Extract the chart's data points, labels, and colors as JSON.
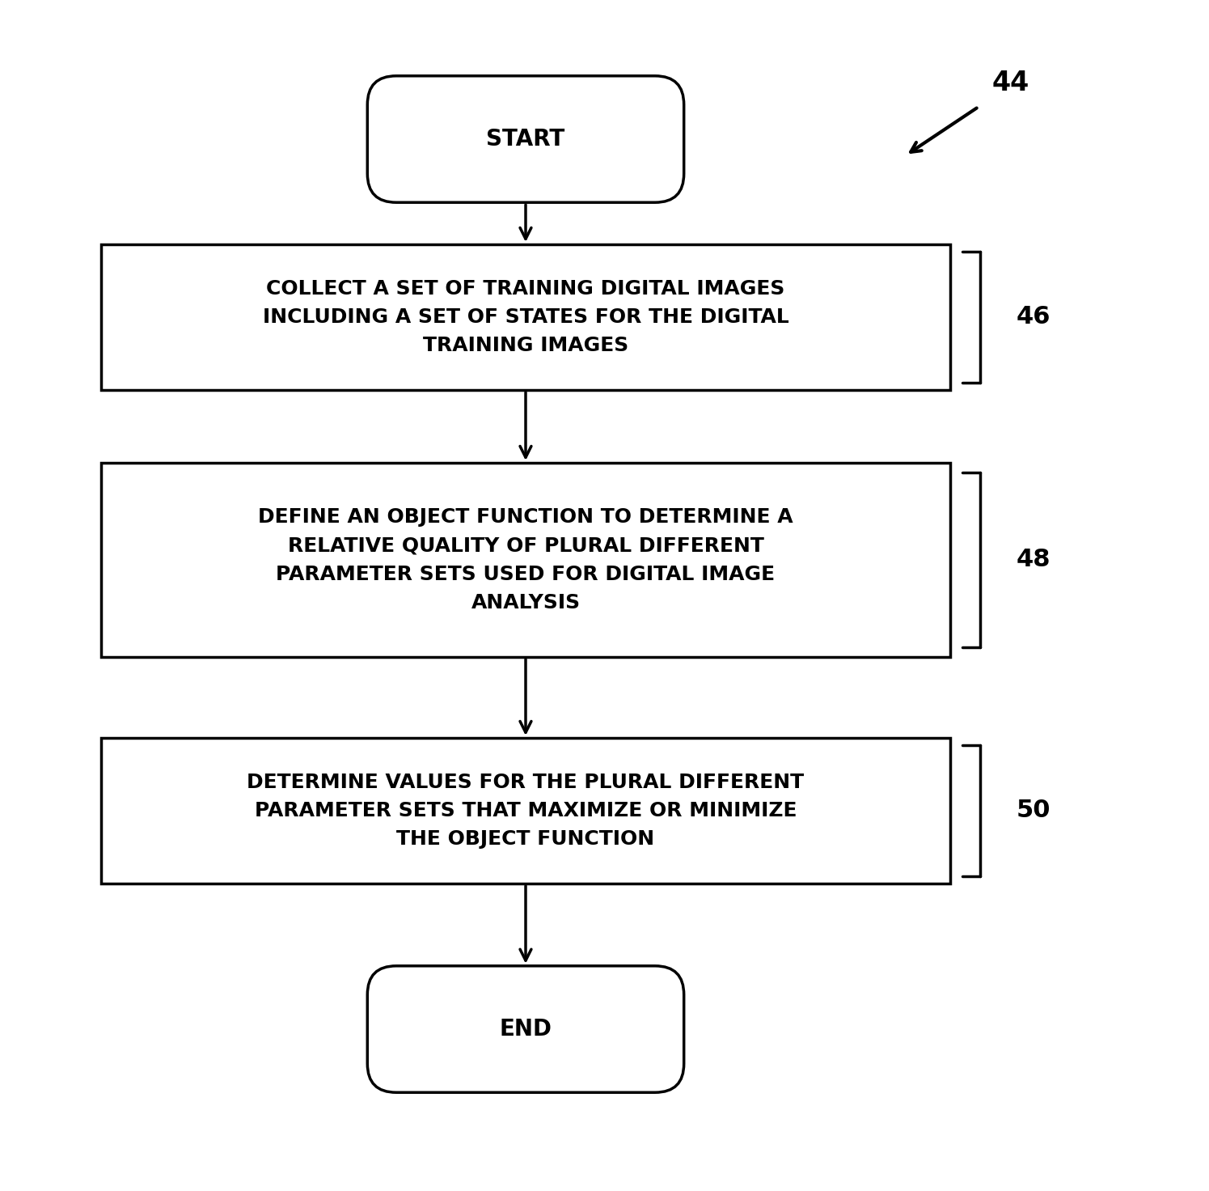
{
  "bg_color": "#ffffff",
  "text_color": "#000000",
  "box_color": "#ffffff",
  "box_edge_color": "#000000",
  "arrow_color": "#000000",
  "label_44": "44",
  "start_label": "START",
  "end_label": "END",
  "box1_text": "COLLECT A SET OF TRAINING DIGITAL IMAGES\nINCLUDING A SET OF STATES FOR THE DIGITAL\nTRAINING IMAGES",
  "box1_label": "46",
  "box2_text": "DEFINE AN OBJECT FUNCTION TO DETERMINE A\nRELATIVE QUALITY OF PLURAL DIFFERENT\nPARAMETER SETS USED FOR DIGITAL IMAGE\nANALYSIS",
  "box2_label": "48",
  "box3_text": "DETERMINE VALUES FOR THE PLURAL DIFFERENT\nPARAMETER SETS THAT MAXIMIZE OR MINIMIZE\nTHE OBJECT FUNCTION",
  "box3_label": "50",
  "font_size_box": 18,
  "font_size_terminal": 20,
  "font_size_label": 22,
  "line_width": 2.5,
  "arrow_lw": 2.5
}
